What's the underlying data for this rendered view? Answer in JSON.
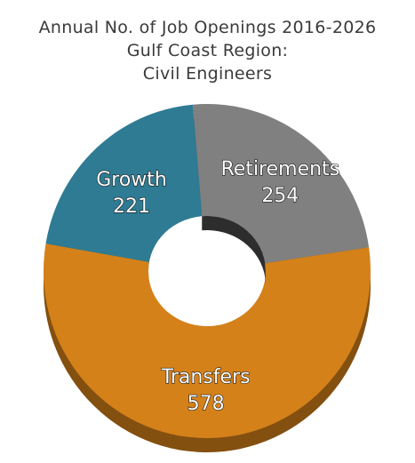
{
  "title_lines": [
    "Annual No. of Job Openings 2016-2026",
    "Gulf Coast Region:",
    "Civil Engineers"
  ],
  "chart_data": {
    "type": "pie",
    "style": "donut-3d",
    "title": "Annual No. of Job Openings 2016-2026 Gulf Coast Region: Civil Engineers",
    "categories": [
      "Retirements",
      "Transfers",
      "Growth"
    ],
    "values": [
      254,
      578,
      221
    ],
    "value_labels": [
      "254",
      "578",
      "221"
    ],
    "colors": [
      "#808080",
      "#D4811A",
      "#2E7B93"
    ],
    "legend": "none"
  }
}
